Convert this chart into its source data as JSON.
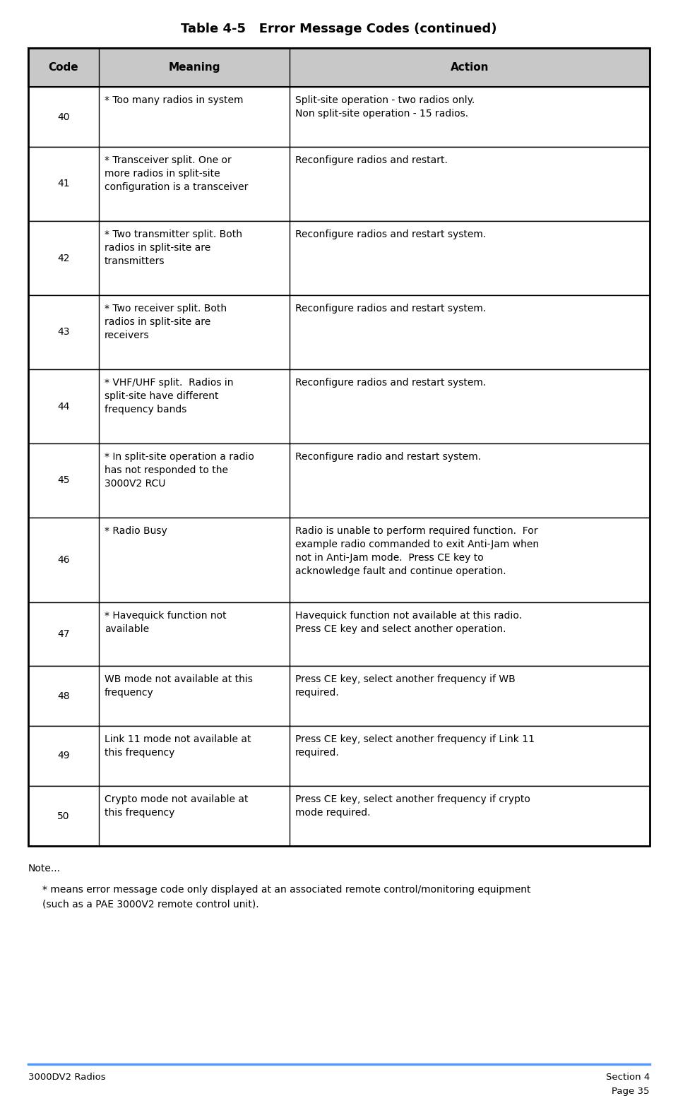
{
  "title": "Table 4-5   Error Message Codes (continued)",
  "title_fontsize": 13,
  "header_bg": "#c8c8c8",
  "row_bg": "#ffffff",
  "border_color": "#000000",
  "columns": [
    "Code",
    "Meaning",
    "Action"
  ],
  "header_fontsize": 11,
  "cell_fontsize": 10,
  "note_fontsize": 10,
  "rows": [
    {
      "code": "40",
      "meaning": "* Too many radios in system",
      "action": "Split-site operation - two radios only.\nNon split-site operation - 15 radios."
    },
    {
      "code": "41",
      "meaning": "* Transceiver split. One or\nmore radios in split-site\nconfiguration is a transceiver",
      "action": "Reconfigure radios and restart."
    },
    {
      "code": "42",
      "meaning": "* Two transmitter split. Both\nradios in split-site are\ntransmitters",
      "action": "Reconfigure radios and restart system."
    },
    {
      "code": "43",
      "meaning": "* Two receiver split. Both\nradios in split-site are\nreceivers",
      "action": "Reconfigure radios and restart system."
    },
    {
      "code": "44",
      "meaning": "* VHF/UHF split.  Radios in\nsplit-site have different\nfrequency bands",
      "action": "Reconfigure radios and restart system."
    },
    {
      "code": "45",
      "meaning": "* In split-site operation a radio\nhas not responded to the\n3000V2 RCU",
      "action": "Reconfigure radio and restart system."
    },
    {
      "code": "46",
      "meaning": "* Radio Busy",
      "action": "Radio is unable to perform required function.  For\nexample radio commanded to exit Anti-Jam when\nnot in Anti-Jam mode.  Press CE key to\nacknowledge fault and continue operation."
    },
    {
      "code": "47",
      "meaning": "* Havequick function not\navailable",
      "action": "Havequick function not available at this radio.\nPress CE key and select another operation."
    },
    {
      "code": "48",
      "meaning": "WB mode not available at this\nfrequency",
      "action": "Press CE key, select another frequency if WB\nrequired."
    },
    {
      "code": "49",
      "meaning": "Link 11 mode not available at\nthis frequency",
      "action": "Press CE key, select another frequency if Link 11\nrequired."
    },
    {
      "code": "50",
      "meaning": "Crypto mode not available at\nthis frequency",
      "action": "Press CE key, select another frequency if crypto\nmode required."
    }
  ],
  "note_title": "Note...",
  "note_text": "* means error message code only displayed at an associated remote control/monitoring equipment\n(such as a PAE 3000V2 remote control unit).",
  "footer_left": "3000DV2 Radios",
  "footer_right_top": "Section 4",
  "footer_right_bottom": "Page 35",
  "footer_line_color": "#5599ff",
  "page_bg": "#ffffff",
  "text_color": "#000000"
}
